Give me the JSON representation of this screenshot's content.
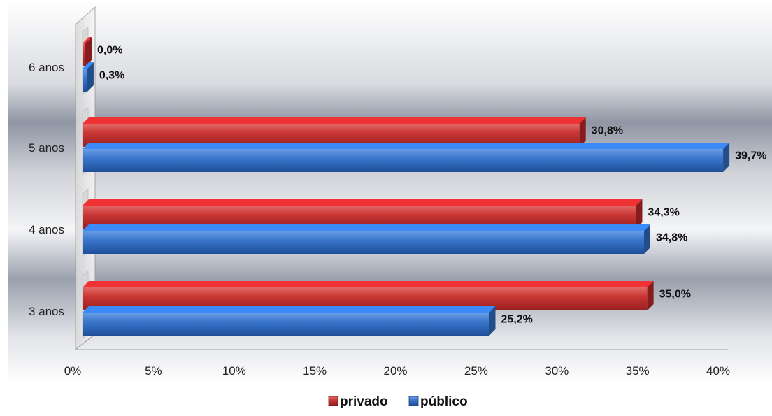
{
  "chart_data": {
    "type": "bar",
    "orientation": "horizontal",
    "categories": [
      "3 anos",
      "4 anos",
      "5 anos",
      "6 anos"
    ],
    "series": [
      {
        "name": "privado",
        "values": [
          35.0,
          34.3,
          30.8,
          0.0
        ],
        "labels": [
          "35,0%",
          "34,3%",
          "30,8%",
          "0,0%"
        ],
        "color": "#c0282a"
      },
      {
        "name": "público",
        "values": [
          25.2,
          34.8,
          39.7,
          0.3
        ],
        "labels": [
          "25,2%",
          "34,8%",
          "39,7%",
          "0,3%"
        ],
        "color": "#2f6ec6"
      }
    ],
    "x_ticks": [
      "0%",
      "5%",
      "10%",
      "15%",
      "20%",
      "25%",
      "30%",
      "35%",
      "40%"
    ],
    "xlim": [
      0,
      40
    ],
    "legend_position": "bottom",
    "grid": false
  }
}
